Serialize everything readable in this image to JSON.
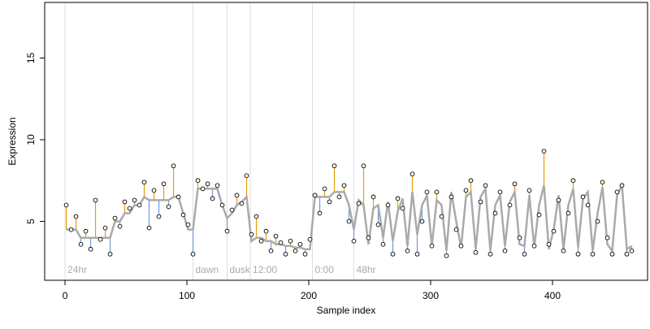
{
  "chart_data": {
    "type": "scatter",
    "x_label": "Sample index",
    "y_label": "Expression",
    "xlim": [
      -16.7,
      478
    ],
    "ylim": [
      1.4,
      18.4
    ],
    "xticks": [
      0,
      100,
      200,
      300,
      400
    ],
    "yticks": [
      5,
      10,
      15
    ],
    "colors": {
      "above": "#e69f00",
      "below": "#6f9bd9",
      "fit": "#aaaaaa",
      "guide": "#dddddd"
    },
    "annotations": [
      {
        "x": 0,
        "label": "24hr"
      },
      {
        "x": 105,
        "label": "dawn"
      },
      {
        "x": 133,
        "label": "dusk"
      },
      {
        "x": 152,
        "label": "12:00"
      },
      {
        "x": 203,
        "label": "0:00"
      },
      {
        "x": 237,
        "label": "48hr"
      }
    ],
    "x": [
      1,
      5,
      9,
      13,
      17,
      21,
      25,
      29,
      33,
      37,
      41,
      45,
      49,
      53,
      57,
      61,
      65,
      69,
      73,
      77,
      81,
      85,
      89,
      93,
      97,
      101,
      105,
      109,
      113,
      117,
      121,
      125,
      129,
      133,
      137,
      141,
      145,
      149,
      153,
      157,
      161,
      165,
      169,
      173,
      177,
      181,
      185,
      189,
      193,
      197,
      201,
      205,
      209,
      213,
      217,
      221,
      225,
      229,
      233,
      237,
      241,
      245,
      249,
      253,
      257,
      261,
      265,
      269,
      273,
      277,
      281,
      285,
      289,
      293,
      297,
      301,
      305,
      309,
      313,
      317,
      321,
      325,
      329,
      333,
      337,
      341,
      345,
      349,
      353,
      357,
      361,
      365,
      369,
      373,
      377,
      381,
      385,
      389,
      393,
      397,
      401,
      405,
      409,
      413,
      417,
      421,
      425,
      429,
      433,
      437,
      441,
      445,
      449,
      453,
      457,
      461,
      465
    ],
    "observed": [
      6.0,
      4.5,
      5.3,
      3.6,
      4.4,
      3.3,
      6.3,
      3.9,
      4.6,
      3.0,
      5.2,
      4.7,
      6.2,
      5.8,
      6.3,
      6.0,
      7.4,
      4.6,
      6.9,
      5.3,
      7.3,
      5.9,
      8.4,
      6.5,
      5.4,
      4.8,
      3.0,
      7.5,
      7.0,
      7.3,
      6.4,
      7.2,
      6.0,
      4.4,
      5.7,
      6.6,
      6.1,
      7.8,
      4.2,
      5.3,
      3.8,
      4.4,
      3.2,
      4.1,
      3.7,
      3.0,
      3.8,
      3.2,
      3.6,
      3.0,
      3.9,
      6.6,
      5.5,
      7.0,
      6.2,
      8.4,
      6.5,
      7.2,
      5.0,
      3.8,
      6.1,
      8.4,
      4.0,
      6.5,
      4.8,
      3.6,
      6.0,
      3.0,
      6.4,
      5.8,
      3.2,
      7.9,
      3.0,
      5.0,
      6.8,
      3.5,
      6.8,
      5.3,
      2.9,
      6.5,
      4.5,
      3.5,
      6.9,
      7.5,
      3.1,
      6.2,
      7.2,
      3.0,
      5.5,
      6.8,
      3.2,
      6.0,
      7.3,
      4.0,
      3.0,
      6.9,
      3.5,
      5.4,
      9.3,
      3.6,
      4.4,
      6.3,
      3.2,
      5.5,
      7.5,
      3.0,
      6.5,
      6.0,
      3.0,
      5.0,
      7.4,
      4.0,
      3.0,
      6.8,
      7.2,
      3.0,
      3.2
    ],
    "fitted": [
      4.5,
      4.5,
      4.5,
      4.0,
      4.0,
      4.0,
      4.0,
      4.0,
      4.0,
      4.0,
      5.0,
      5.0,
      5.5,
      5.5,
      6.0,
      6.0,
      6.5,
      6.3,
      6.3,
      6.3,
      6.3,
      6.3,
      6.5,
      6.5,
      5.5,
      4.5,
      4.5,
      7.0,
      7.0,
      7.0,
      7.0,
      7.0,
      6.0,
      5.2,
      5.5,
      6.0,
      6.2,
      6.5,
      3.8,
      4.0,
      4.0,
      3.8,
      3.8,
      3.6,
      3.6,
      3.5,
      3.5,
      3.4,
      3.4,
      3.3,
      3.3,
      6.5,
      6.5,
      6.5,
      6.5,
      6.8,
      6.8,
      6.8,
      6.0,
      4.5,
      6.3,
      6.0,
      3.6,
      5.8,
      6.0,
      4.0,
      6.2,
      3.8,
      5.6,
      6.4,
      3.5,
      6.8,
      4.2,
      6.0,
      6.6,
      3.5,
      6.3,
      6.0,
      3.2,
      6.8,
      5.0,
      3.4,
      6.5,
      6.8,
      3.3,
      6.5,
      7.0,
      3.2,
      6.0,
      6.6,
      3.5,
      6.2,
      6.8,
      3.6,
      3.5,
      6.6,
      3.4,
      6.0,
      7.2,
      3.3,
      4.5,
      6.6,
      3.3,
      6.0,
      7.0,
      3.4,
      6.4,
      6.8,
      3.2,
      5.5,
      7.1,
      3.6,
      3.2,
      6.6,
      7.2,
      3.3,
      3.5
    ]
  }
}
